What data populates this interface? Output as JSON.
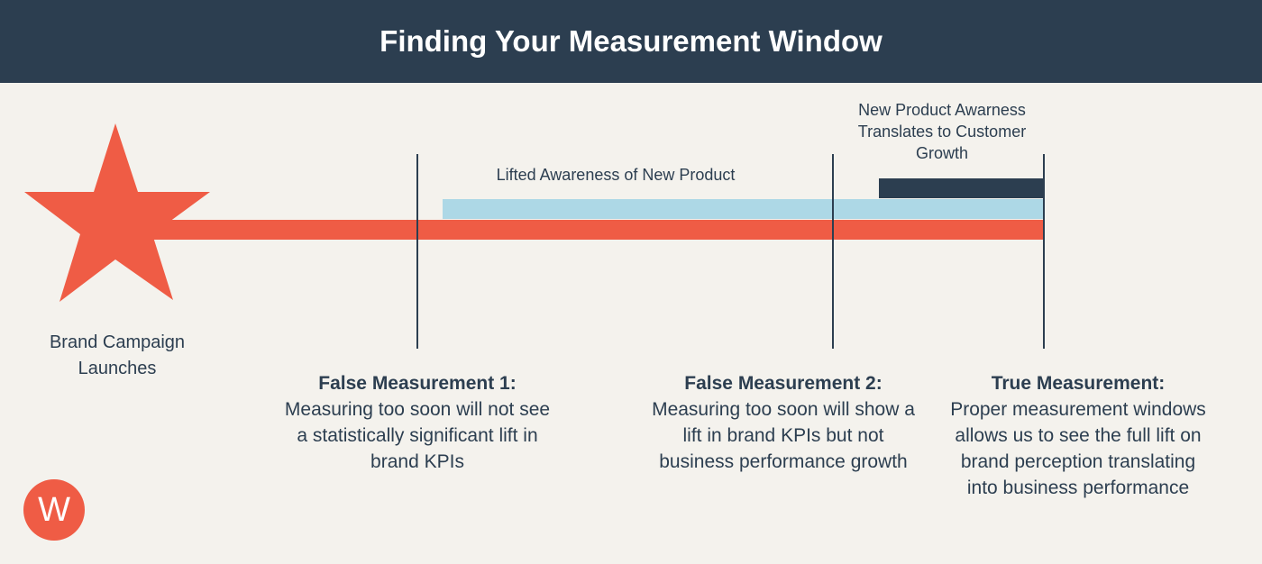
{
  "title": "Finding Your Measurement Window",
  "colors": {
    "header": "#2c3e50",
    "campaign": "#ef5c45",
    "awareness": "#add8e6",
    "growth": "#2c3e50",
    "background": "#f4f2ed"
  },
  "start_label": "Brand Campaign Launches",
  "bars": {
    "awareness_label": "Lifted Awareness of New Product",
    "growth_label": "New Product Awarness Translates to Customer Growth"
  },
  "measurements": [
    {
      "title": "False Measurement 1:",
      "body": "Measuring too soon will not see a statistically significant lift in brand KPIs"
    },
    {
      "title": "False Measurement 2:",
      "body": "Measuring too soon will show a lift in brand KPIs but not business performance growth"
    },
    {
      "title": "True Measurement:",
      "body": "Proper measurement windows allows us to see the full lift on brand perception translating into business performance"
    }
  ],
  "logo": "W"
}
